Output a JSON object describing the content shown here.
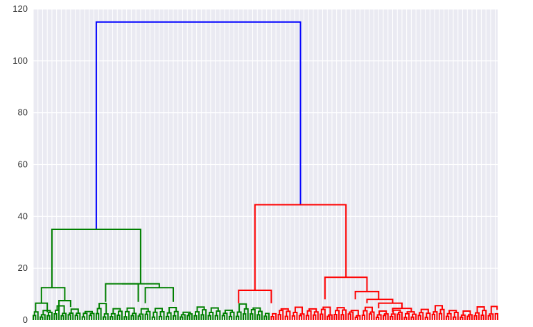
{
  "chart_data": {
    "type": "dendrogram",
    "title": "",
    "xlabel": "",
    "ylabel": "",
    "ylim": [
      0,
      120
    ],
    "yticks": [
      0,
      20,
      40,
      60,
      80,
      100,
      120
    ],
    "ytick_labels": [
      "0",
      "20",
      "40",
      "60",
      "80",
      "100",
      "120"
    ],
    "grid": true,
    "leaf_count": 200,
    "clusters": [
      {
        "name": "green",
        "color": "#008000"
      },
      {
        "name": "red",
        "color": "#ff0000"
      }
    ],
    "root_link_color": "#0000ff",
    "links": [
      {
        "color": "#0000ff",
        "x": [
          27.0,
          27.0,
          114.5,
          114.5
        ],
        "y": [
          35,
          115,
          115,
          44.5
        ]
      },
      {
        "color": "#008000",
        "x": [
          8.0,
          8.0,
          46.0,
          46.0
        ],
        "y": [
          12.5,
          35,
          35,
          14
        ]
      },
      {
        "color": "#008000",
        "x": [
          3.5,
          3.5,
          13.5,
          13.5
        ],
        "y": [
          6.5,
          12.5,
          12.5,
          7.5
        ]
      },
      {
        "color": "#008000",
        "x": [
          1.0,
          1.0,
          6.0,
          6.0
        ],
        "y": [
          3,
          6.5,
          6.5,
          3
        ]
      },
      {
        "color": "#008000",
        "x": [
          11.0,
          11.0,
          16.0,
          16.0
        ],
        "y": [
          3.5,
          7.5,
          7.5,
          5
        ]
      },
      {
        "color": "#008000",
        "x": [
          38.0,
          38.0,
          54.0,
          54.0
        ],
        "y": [
          14,
          14,
          14,
          12.5
        ]
      },
      {
        "color": "#008000",
        "x": [
          31.0,
          31.0,
          45.0,
          45.0
        ],
        "y": [
          7,
          14,
          14,
          7
        ]
      },
      {
        "color": "#008000",
        "x": [
          48.0,
          48.0,
          60.0,
          60.0
        ],
        "y": [
          6.5,
          12.5,
          12.5,
          7
        ]
      },
      {
        "color": "#ff0000",
        "x": [
          95.0,
          95.0,
          134.0,
          134.0
        ],
        "y": [
          11.5,
          44.5,
          44.5,
          16.5
        ]
      },
      {
        "color": "#ff0000",
        "x": [
          88.0,
          88.0,
          102.0,
          102.0
        ],
        "y": [
          6.5,
          11.5,
          11.5,
          6.5
        ]
      },
      {
        "color": "#ff0000",
        "x": [
          125.0,
          125.0,
          143.0,
          143.0
        ],
        "y": [
          8,
          16.5,
          16.5,
          11
        ]
      },
      {
        "color": "#ff0000",
        "x": [
          138.0,
          138.0,
          148.0,
          148.0
        ],
        "y": [
          8,
          11,
          11,
          8
        ]
      },
      {
        "color": "#ff0000",
        "x": [
          143.0,
          143.0,
          154.0,
          154.0
        ],
        "y": [
          6.5,
          8,
          8,
          6.5
        ]
      },
      {
        "color": "#ff0000",
        "x": [
          148.0,
          148.0,
          158.0,
          158.0
        ],
        "y": [
          4.5,
          6.5,
          6.5,
          4.5
        ]
      },
      {
        "color": "#ff0000",
        "x": [
          154.0,
          154.0,
          162.0,
          162.0
        ],
        "y": [
          3,
          4.5,
          4.5,
          3
        ]
      }
    ],
    "root_merge_height": 115,
    "left_cluster_merge_height": 35,
    "right_cluster_merge_height": 44.5
  }
}
